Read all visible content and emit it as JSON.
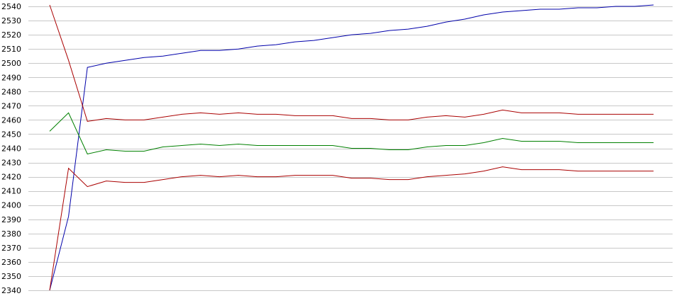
{
  "chart_data": {
    "type": "line",
    "x": [
      0,
      1,
      2,
      3,
      4,
      5,
      6,
      7,
      8,
      9,
      10,
      11,
      12,
      13,
      14,
      15,
      16,
      17,
      18,
      19,
      20,
      21,
      22,
      23,
      24,
      25,
      26,
      27,
      28,
      29,
      30,
      31,
      32
    ],
    "ylim": [
      2340,
      2540
    ],
    "yticks": [
      2340,
      2350,
      2360,
      2370,
      2380,
      2390,
      2400,
      2410,
      2420,
      2430,
      2440,
      2450,
      2460,
      2470,
      2480,
      2490,
      2500,
      2510,
      2520,
      2530,
      2540
    ],
    "grid": true,
    "legend": "none",
    "xlabel": "",
    "ylabel": "",
    "title": "",
    "series": [
      {
        "color": "#0000aa",
        "values": [
          2340,
          2392,
          2497,
          2500,
          2502,
          2504,
          2505,
          2507,
          2509,
          2509,
          2510,
          2512,
          2513,
          2515,
          2516,
          2518,
          2520,
          2521,
          2523,
          2524,
          2526,
          2529,
          2531,
          2534,
          2536,
          2537,
          2538,
          2538,
          2539,
          2539,
          2540,
          2540,
          2541
        ]
      },
      {
        "color": "#aa0000",
        "values": [
          2541,
          2502,
          2459,
          2461,
          2460,
          2460,
          2462,
          2464,
          2465,
          2464,
          2465,
          2464,
          2464,
          2463,
          2463,
          2463,
          2461,
          2461,
          2460,
          2460,
          2462,
          2463,
          2462,
          2464,
          2467,
          2465,
          2465,
          2465,
          2464,
          2464,
          2464,
          2464,
          2464
        ]
      },
      {
        "color": "#008000",
        "values": [
          2452,
          2465,
          2436,
          2439,
          2438,
          2438,
          2441,
          2442,
          2443,
          2442,
          2443,
          2442,
          2442,
          2442,
          2442,
          2442,
          2440,
          2440,
          2439,
          2439,
          2441,
          2442,
          2442,
          2444,
          2447,
          2445,
          2445,
          2445,
          2444,
          2444,
          2444,
          2444,
          2444
        ]
      },
      {
        "color": "#aa0000",
        "values": [
          2340,
          2426,
          2413,
          2417,
          2416,
          2416,
          2418,
          2420,
          2421,
          2420,
          2421,
          2420,
          2420,
          2421,
          2421,
          2421,
          2419,
          2419,
          2418,
          2418,
          2420,
          2421,
          2422,
          2424,
          2427,
          2425,
          2425,
          2425,
          2424,
          2424,
          2424,
          2424,
          2424
        ]
      }
    ]
  }
}
